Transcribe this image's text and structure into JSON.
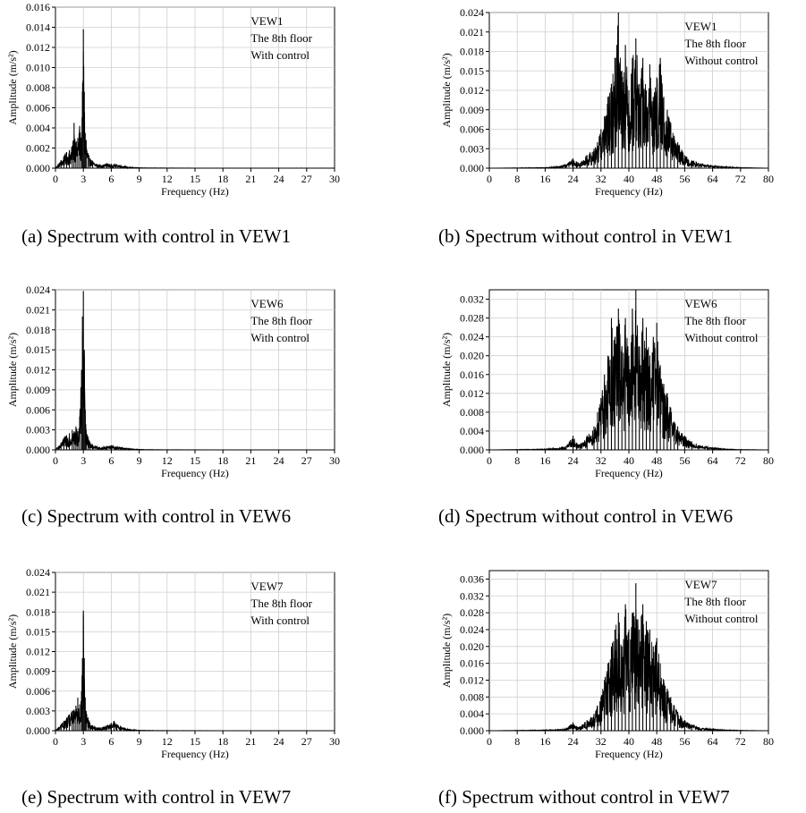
{
  "chart_data": [
    {
      "type": "line",
      "panel": "a",
      "caption": "(a) Spectrum with control in VEW1",
      "xlabel": "Frequency (Hz)",
      "ylabel": "Amplitude (m/s²)",
      "xlim": [
        0,
        30
      ],
      "ylim": [
        0,
        0.016
      ],
      "xticks": [
        0,
        3,
        6,
        9,
        12,
        15,
        18,
        21,
        24,
        27,
        30
      ],
      "yticks": [
        0.0,
        0.002,
        0.004,
        0.006,
        0.008,
        0.01,
        0.012,
        0.014,
        0.016
      ],
      "ytick_labels": [
        "0.000",
        "0.002",
        "0.004",
        "0.006",
        "0.008",
        "0.010",
        "0.012",
        "0.014",
        "0.016"
      ],
      "grid": true,
      "annotation": [
        "VEW1",
        "The 8th floor",
        "With control"
      ],
      "series": [
        {
          "x": [
            0,
            0.3,
            0.6,
            0.9,
            1.2,
            1.5,
            1.8,
            2.0,
            2.2,
            2.4,
            2.6,
            2.8,
            2.9,
            3.0,
            3.1,
            3.2,
            3.3,
            3.5,
            3.7,
            4.0,
            4.5,
            5.0,
            5.5,
            6.0,
            6.5,
            7.0,
            7.5,
            8.0,
            9.0,
            10,
            12,
            15,
            18,
            21,
            24,
            27,
            30
          ],
          "y": [
            0.0001,
            0.0004,
            0.0008,
            0.0012,
            0.0016,
            0.0018,
            0.0022,
            0.0045,
            0.0026,
            0.003,
            0.0042,
            0.003,
            0.0076,
            0.0138,
            0.0076,
            0.0035,
            0.0028,
            0.0015,
            0.001,
            0.0007,
            0.0004,
            0.0003,
            0.0005,
            0.0004,
            0.0004,
            0.0003,
            0.0002,
            0.0001,
            5e-05,
            3e-05,
            2e-05,
            1e-05,
            1e-05,
            1e-05,
            1e-05,
            1e-05,
            1e-05
          ]
        }
      ]
    },
    {
      "type": "line",
      "panel": "b",
      "caption": "(b) Spectrum without control in VEW1",
      "xlabel": "Frequency (Hz)",
      "ylabel": "Amplitude (m/s²)",
      "xlim": [
        0,
        80
      ],
      "ylim": [
        0,
        0.024
      ],
      "xticks": [
        0,
        8,
        16,
        24,
        32,
        40,
        48,
        56,
        64,
        72,
        80
      ],
      "yticks": [
        0.0,
        0.003,
        0.006,
        0.009,
        0.012,
        0.015,
        0.018,
        0.021,
        0.024
      ],
      "ytick_labels": [
        "0.000",
        "0.003",
        "0.006",
        "0.009",
        "0.012",
        "0.015",
        "0.018",
        "0.021",
        "0.024"
      ],
      "grid": true,
      "annotation": [
        "VEW1",
        "The 8th floor",
        "Without control"
      ],
      "series": [
        {
          "x": [
            0,
            8,
            16,
            20,
            22,
            24,
            25,
            26,
            28,
            30,
            31,
            32,
            33,
            34,
            35,
            36,
            37,
            38,
            39,
            40,
            41,
            42,
            43,
            44,
            45,
            46,
            47,
            48,
            49,
            50,
            51,
            52,
            53,
            54,
            56,
            58,
            60,
            64,
            68,
            72,
            76,
            80
          ],
          "y": [
            0.0,
            5e-05,
            0.0001,
            0.0003,
            0.0006,
            0.0015,
            0.001,
            0.0008,
            0.002,
            0.003,
            0.004,
            0.006,
            0.008,
            0.011,
            0.013,
            0.017,
            0.0242,
            0.015,
            0.019,
            0.012,
            0.017,
            0.02,
            0.013,
            0.017,
            0.012,
            0.016,
            0.011,
            0.014,
            0.017,
            0.011,
            0.009,
            0.007,
            0.005,
            0.004,
            0.002,
            0.0012,
            0.0008,
            0.0004,
            0.0002,
            0.0001,
            5e-05,
            0.0
          ]
        }
      ]
    },
    {
      "type": "line",
      "panel": "c",
      "caption": "(c) Spectrum with control in VEW6",
      "xlabel": "Frequency (Hz)",
      "ylabel": "Amplitude (m/s²)",
      "xlim": [
        0,
        30
      ],
      "ylim": [
        0,
        0.024
      ],
      "xticks": [
        0,
        3,
        6,
        9,
        12,
        15,
        18,
        21,
        24,
        27,
        30
      ],
      "yticks": [
        0.0,
        0.003,
        0.006,
        0.009,
        0.012,
        0.015,
        0.018,
        0.021,
        0.024
      ],
      "ytick_labels": [
        "0.000",
        "0.003",
        "0.006",
        "0.009",
        "0.012",
        "0.015",
        "0.018",
        "0.021",
        "0.024"
      ],
      "grid": true,
      "annotation": [
        "VEW6",
        "The 8th floor",
        "With control"
      ],
      "series": [
        {
          "x": [
            0,
            0.3,
            0.6,
            0.9,
            1.2,
            1.5,
            1.8,
            2.0,
            2.2,
            2.4,
            2.6,
            2.8,
            2.9,
            3.0,
            3.1,
            3.2,
            3.3,
            3.5,
            3.7,
            4.0,
            4.5,
            5.0,
            5.5,
            6.0,
            6.5,
            7.0,
            7.5,
            8.0,
            9.0,
            10,
            12,
            15,
            18,
            21,
            24,
            27,
            30
          ],
          "y": [
            0.0001,
            0.0005,
            0.001,
            0.0018,
            0.0022,
            0.0025,
            0.003,
            0.0028,
            0.0035,
            0.0028,
            0.005,
            0.012,
            0.02,
            0.0238,
            0.015,
            0.006,
            0.003,
            0.002,
            0.0012,
            0.0008,
            0.0005,
            0.0004,
            0.0006,
            0.0007,
            0.0005,
            0.0004,
            0.0003,
            0.0002,
            8e-05,
            5e-05,
            3e-05,
            2e-05,
            1e-05,
            1e-05,
            1e-05,
            1e-05,
            1e-05
          ]
        }
      ]
    },
    {
      "type": "line",
      "panel": "d",
      "caption": "(d) Spectrum without control in VEW6",
      "xlabel": "Frequency (Hz)",
      "ylabel": "Amplitude (m/s²)",
      "xlim": [
        0,
        80
      ],
      "ylim": [
        0,
        0.034
      ],
      "xticks": [
        0,
        8,
        16,
        24,
        32,
        40,
        48,
        56,
        64,
        72,
        80
      ],
      "yticks": [
        0.0,
        0.004,
        0.008,
        0.012,
        0.016,
        0.02,
        0.024,
        0.028,
        0.032
      ],
      "ytick_labels": [
        "0.000",
        "0.004",
        "0.008",
        "0.012",
        "0.016",
        "0.020",
        "0.024",
        "0.028",
        "0.032"
      ],
      "grid": true,
      "annotation": [
        "VEW6",
        "The 8th floor",
        "Without control"
      ],
      "series": [
        {
          "x": [
            0,
            8,
            16,
            20,
            22,
            24,
            25,
            26,
            28,
            30,
            31,
            32,
            33,
            34,
            35,
            36,
            37,
            38,
            39,
            40,
            41,
            42,
            43,
            44,
            45,
            46,
            47,
            48,
            49,
            50,
            51,
            52,
            53,
            54,
            56,
            58,
            60,
            64,
            68,
            72,
            76,
            80
          ],
          "y": [
            0.0,
            0.0001,
            0.0002,
            0.0004,
            0.0008,
            0.003,
            0.0015,
            0.0012,
            0.003,
            0.005,
            0.008,
            0.011,
            0.016,
            0.02,
            0.028,
            0.024,
            0.03,
            0.022,
            0.028,
            0.02,
            0.03,
            0.034,
            0.022,
            0.028,
            0.026,
            0.02,
            0.024,
            0.027,
            0.018,
            0.014,
            0.012,
            0.009,
            0.006,
            0.005,
            0.003,
            0.0018,
            0.001,
            0.0005,
            0.0002,
            0.0001,
            5e-05,
            0.0
          ]
        }
      ]
    },
    {
      "type": "line",
      "panel": "e",
      "caption": "(e) Spectrum with control in VEW7",
      "xlabel": "Frequency (Hz)",
      "ylabel": "Amplitude (m/s²)",
      "xlim": [
        0,
        30
      ],
      "ylim": [
        0,
        0.024
      ],
      "xticks": [
        0,
        3,
        6,
        9,
        12,
        15,
        18,
        21,
        24,
        27,
        30
      ],
      "yticks": [
        0.0,
        0.003,
        0.006,
        0.009,
        0.012,
        0.015,
        0.018,
        0.021,
        0.024
      ],
      "ytick_labels": [
        "0.000",
        "0.003",
        "0.006",
        "0.009",
        "0.012",
        "0.015",
        "0.018",
        "0.021",
        "0.024"
      ],
      "grid": true,
      "annotation": [
        "VEW7",
        "The 8th floor",
        "With control"
      ],
      "series": [
        {
          "x": [
            0,
            0.3,
            0.6,
            0.9,
            1.2,
            1.5,
            1.8,
            2.0,
            2.2,
            2.4,
            2.6,
            2.8,
            2.9,
            3.0,
            3.1,
            3.2,
            3.3,
            3.5,
            3.7,
            4.0,
            4.5,
            5.0,
            5.5,
            6.0,
            6.3,
            6.6,
            7.0,
            7.5,
            8.0,
            9.0,
            10,
            12,
            15,
            18,
            21,
            24,
            27,
            30
          ],
          "y": [
            0.0001,
            0.0005,
            0.001,
            0.0015,
            0.002,
            0.0025,
            0.003,
            0.0032,
            0.0038,
            0.005,
            0.004,
            0.006,
            0.011,
            0.0182,
            0.011,
            0.005,
            0.003,
            0.002,
            0.0012,
            0.0008,
            0.0005,
            0.0005,
            0.0008,
            0.0012,
            0.0015,
            0.001,
            0.0007,
            0.0004,
            0.0002,
            8e-05,
            5e-05,
            3e-05,
            2e-05,
            1e-05,
            1e-05,
            1e-05,
            1e-05,
            1e-05
          ]
        }
      ]
    },
    {
      "type": "line",
      "panel": "f",
      "caption": "(f) Spectrum without control in VEW7",
      "xlabel": "Frequency (Hz)",
      "ylabel": "Amplitude (m/s²)",
      "xlim": [
        0,
        80
      ],
      "ylim": [
        0,
        0.038
      ],
      "xticks": [
        0,
        8,
        16,
        24,
        32,
        40,
        48,
        56,
        64,
        72,
        80
      ],
      "yticks": [
        0.0,
        0.004,
        0.008,
        0.012,
        0.016,
        0.02,
        0.024,
        0.028,
        0.032,
        0.036
      ],
      "ytick_labels": [
        "0.000",
        "0.004",
        "0.008",
        "0.012",
        "0.016",
        "0.020",
        "0.024",
        "0.028",
        "0.032",
        "0.036"
      ],
      "grid": true,
      "annotation": [
        "VEW7",
        "The 8th floor",
        "Without control"
      ],
      "series": [
        {
          "x": [
            0,
            8,
            16,
            20,
            22,
            24,
            25,
            26,
            28,
            30,
            31,
            32,
            33,
            34,
            35,
            36,
            37,
            38,
            39,
            40,
            41,
            42,
            43,
            44,
            45,
            46,
            47,
            48,
            49,
            50,
            51,
            52,
            53,
            54,
            56,
            58,
            60,
            64,
            68,
            72,
            76,
            80
          ],
          "y": [
            0.0,
            0.0001,
            0.0002,
            0.0003,
            0.0006,
            0.002,
            0.001,
            0.001,
            0.0025,
            0.004,
            0.006,
            0.008,
            0.012,
            0.016,
            0.02,
            0.024,
            0.028,
            0.02,
            0.03,
            0.024,
            0.028,
            0.035,
            0.024,
            0.03,
            0.026,
            0.024,
            0.02,
            0.022,
            0.016,
            0.012,
            0.01,
            0.008,
            0.006,
            0.0045,
            0.0025,
            0.0015,
            0.0008,
            0.0004,
            0.0002,
            0.0001,
            5e-05,
            0.0
          ]
        }
      ]
    }
  ]
}
